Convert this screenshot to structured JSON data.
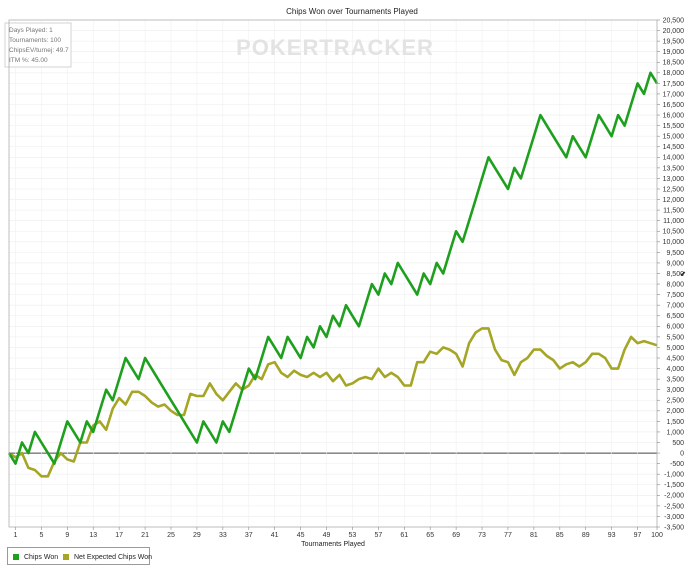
{
  "chart_data": {
    "type": "line",
    "title": "Chips Won over Tournaments Played",
    "xlabel": "Tournaments Played",
    "ylabel": "",
    "xlim": [
      0,
      100
    ],
    "ylim": [
      -3500,
      20500
    ],
    "x_ticks": [
      1,
      5,
      9,
      13,
      17,
      21,
      25,
      29,
      33,
      37,
      41,
      45,
      49,
      53,
      57,
      61,
      65,
      69,
      73,
      77,
      81,
      85,
      89,
      93,
      97,
      100
    ],
    "y_ticks": [
      -3500,
      -3000,
      -2500,
      -2000,
      -1500,
      -1000,
      -500,
      0,
      500,
      1000,
      1500,
      2000,
      2500,
      3000,
      3500,
      4000,
      4500,
      5000,
      5500,
      6000,
      6500,
      7000,
      7500,
      8000,
      8500,
      9000,
      9500,
      10000,
      10500,
      11000,
      11500,
      12000,
      12500,
      13000,
      13500,
      14000,
      14500,
      15000,
      15500,
      16000,
      16500,
      17000,
      17500,
      18000,
      18500,
      19000,
      19500,
      20000,
      20500
    ],
    "grid": true,
    "legend_position": "bottom-left",
    "watermark": "POKERTRACKER",
    "info_box": [
      "Days Played: 1",
      "Tournaments: 100",
      "ChipsEV/turnej: 49.7",
      "ITM %: 45.00"
    ],
    "series": [
      {
        "name": "Chips Won",
        "color": "#1ea01e",
        "points": [
          [
            0,
            0
          ],
          [
            1,
            -500
          ],
          [
            2,
            500
          ],
          [
            3,
            0
          ],
          [
            4,
            1000
          ],
          [
            5,
            500
          ],
          [
            6,
            0
          ],
          [
            7,
            -500
          ],
          [
            8,
            500
          ],
          [
            9,
            1500
          ],
          [
            10,
            1000
          ],
          [
            11,
            500
          ],
          [
            12,
            1500
          ],
          [
            13,
            1000
          ],
          [
            14,
            2000
          ],
          [
            15,
            3000
          ],
          [
            16,
            2500
          ],
          [
            17,
            3500
          ],
          [
            18,
            4500
          ],
          [
            19,
            4000
          ],
          [
            20,
            3500
          ],
          [
            21,
            4500
          ],
          [
            22,
            4000
          ],
          [
            23,
            3500
          ],
          [
            24,
            3000
          ],
          [
            25,
            2500
          ],
          [
            26,
            2000
          ],
          [
            27,
            1500
          ],
          [
            28,
            1000
          ],
          [
            29,
            500
          ],
          [
            30,
            1500
          ],
          [
            31,
            1000
          ],
          [
            32,
            500
          ],
          [
            33,
            1500
          ],
          [
            34,
            1000
          ],
          [
            35,
            2000
          ],
          [
            36,
            3000
          ],
          [
            37,
            4000
          ],
          [
            38,
            3500
          ],
          [
            39,
            4500
          ],
          [
            40,
            5500
          ],
          [
            41,
            5000
          ],
          [
            42,
            4500
          ],
          [
            43,
            5500
          ],
          [
            44,
            5000
          ],
          [
            45,
            4500
          ],
          [
            46,
            5500
          ],
          [
            47,
            5000
          ],
          [
            48,
            6000
          ],
          [
            49,
            5500
          ],
          [
            50,
            6500
          ],
          [
            51,
            6000
          ],
          [
            52,
            7000
          ],
          [
            53,
            6500
          ],
          [
            54,
            6000
          ],
          [
            55,
            7000
          ],
          [
            56,
            8000
          ],
          [
            57,
            7500
          ],
          [
            58,
            8500
          ],
          [
            59,
            8000
          ],
          [
            60,
            9000
          ],
          [
            61,
            8500
          ],
          [
            62,
            8000
          ],
          [
            63,
            7500
          ],
          [
            64,
            8500
          ],
          [
            65,
            8000
          ],
          [
            66,
            9000
          ],
          [
            67,
            8500
          ],
          [
            68,
            9500
          ],
          [
            69,
            10500
          ],
          [
            70,
            10000
          ],
          [
            71,
            11000
          ],
          [
            72,
            12000
          ],
          [
            73,
            13000
          ],
          [
            74,
            14000
          ],
          [
            75,
            13500
          ],
          [
            76,
            13000
          ],
          [
            77,
            12500
          ],
          [
            78,
            13500
          ],
          [
            79,
            13000
          ],
          [
            80,
            14000
          ],
          [
            81,
            15000
          ],
          [
            82,
            16000
          ],
          [
            83,
            15500
          ],
          [
            84,
            15000
          ],
          [
            85,
            14500
          ],
          [
            86,
            14000
          ],
          [
            87,
            15000
          ],
          [
            88,
            14500
          ],
          [
            89,
            14000
          ],
          [
            90,
            15000
          ],
          [
            91,
            16000
          ],
          [
            92,
            15500
          ],
          [
            93,
            15000
          ],
          [
            94,
            16000
          ],
          [
            95,
            15500
          ],
          [
            96,
            16500
          ],
          [
            97,
            17500
          ],
          [
            98,
            17000
          ],
          [
            99,
            18000
          ],
          [
            100,
            17500
          ]
        ]
      },
      {
        "name": "Net Expected Chips Won",
        "color": "#a5a526",
        "points": [
          [
            0,
            0
          ],
          [
            1,
            -200
          ],
          [
            2,
            0
          ],
          [
            3,
            -700
          ],
          [
            4,
            -800
          ],
          [
            5,
            -1100
          ],
          [
            6,
            -1100
          ],
          [
            7,
            -400
          ],
          [
            8,
            0
          ],
          [
            9,
            -300
          ],
          [
            10,
            -400
          ],
          [
            11,
            500
          ],
          [
            12,
            500
          ],
          [
            13,
            1300
          ],
          [
            14,
            1500
          ],
          [
            15,
            1100
          ],
          [
            16,
            2100
          ],
          [
            17,
            2600
          ],
          [
            18,
            2300
          ],
          [
            19,
            2900
          ],
          [
            20,
            2900
          ],
          [
            21,
            2700
          ],
          [
            22,
            2400
          ],
          [
            23,
            2200
          ],
          [
            24,
            2300
          ],
          [
            25,
            2000
          ],
          [
            26,
            1800
          ],
          [
            27,
            1800
          ],
          [
            28,
            2800
          ],
          [
            29,
            2700
          ],
          [
            30,
            2700
          ],
          [
            31,
            3300
          ],
          [
            32,
            2800
          ],
          [
            33,
            2500
          ],
          [
            34,
            2900
          ],
          [
            35,
            3300
          ],
          [
            36,
            3000
          ],
          [
            37,
            3200
          ],
          [
            38,
            3700
          ],
          [
            39,
            3500
          ],
          [
            40,
            4200
          ],
          [
            41,
            4300
          ],
          [
            42,
            3800
          ],
          [
            43,
            3600
          ],
          [
            44,
            3900
          ],
          [
            45,
            3700
          ],
          [
            46,
            3600
          ],
          [
            47,
            3800
          ],
          [
            48,
            3600
          ],
          [
            49,
            3800
          ],
          [
            50,
            3400
          ],
          [
            51,
            3700
          ],
          [
            52,
            3200
          ],
          [
            53,
            3300
          ],
          [
            54,
            3500
          ],
          [
            55,
            3600
          ],
          [
            56,
            3500
          ],
          [
            57,
            4000
          ],
          [
            58,
            3600
          ],
          [
            59,
            3800
          ],
          [
            60,
            3600
          ],
          [
            61,
            3200
          ],
          [
            62,
            3200
          ],
          [
            63,
            4300
          ],
          [
            64,
            4300
          ],
          [
            65,
            4800
          ],
          [
            66,
            4700
          ],
          [
            67,
            5000
          ],
          [
            68,
            4900
          ],
          [
            69,
            4700
          ],
          [
            70,
            4100
          ],
          [
            71,
            5200
          ],
          [
            72,
            5700
          ],
          [
            73,
            5900
          ],
          [
            74,
            5900
          ],
          [
            75,
            4900
          ],
          [
            76,
            4400
          ],
          [
            77,
            4300
          ],
          [
            78,
            3700
          ],
          [
            79,
            4300
          ],
          [
            80,
            4500
          ],
          [
            81,
            4900
          ],
          [
            82,
            4900
          ],
          [
            83,
            4600
          ],
          [
            84,
            4400
          ],
          [
            85,
            4000
          ],
          [
            86,
            4200
          ],
          [
            87,
            4300
          ],
          [
            88,
            4100
          ],
          [
            89,
            4300
          ],
          [
            90,
            4700
          ],
          [
            91,
            4700
          ],
          [
            92,
            4500
          ],
          [
            93,
            4000
          ],
          [
            94,
            4000
          ],
          [
            95,
            4900
          ],
          [
            96,
            5500
          ],
          [
            97,
            5200
          ],
          [
            98,
            5300
          ],
          [
            99,
            5200
          ],
          [
            100,
            5100
          ]
        ]
      }
    ]
  }
}
